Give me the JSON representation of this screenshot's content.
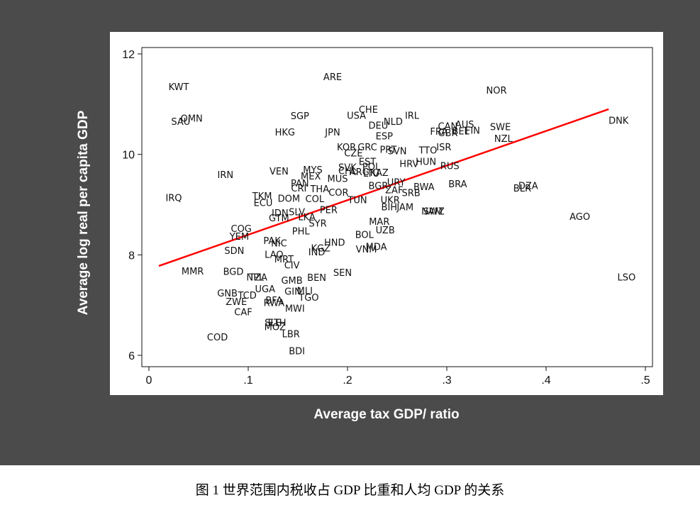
{
  "chart_data": {
    "type": "scatter",
    "xlabel": "Average tax GDP/ ratio",
    "ylabel": "Average log real per capita GDP",
    "xlim": [
      0,
      0.5
    ],
    "ylim": [
      6,
      12
    ],
    "xticks": [
      0,
      0.1,
      0.2,
      0.3,
      0.4,
      0.5
    ],
    "xtick_labels": [
      "0",
      ".1",
      ".2",
      ".3",
      ".4",
      ".5"
    ],
    "yticks": [
      6,
      8,
      10,
      12
    ],
    "ytick_labels": [
      "6",
      "8",
      "10",
      "12"
    ],
    "grid": false,
    "fit_line": {
      "x": [
        0.01,
        0.463
      ],
      "y": [
        7.78,
        10.9
      ],
      "color": "#ff0000"
    },
    "points": [
      {
        "label": "KWT",
        "x": 0.03,
        "y": 11.35
      },
      {
        "label": "ARE",
        "x": 0.185,
        "y": 11.55
      },
      {
        "label": "NOR",
        "x": 0.35,
        "y": 11.28
      },
      {
        "label": "DNK",
        "x": 0.473,
        "y": 10.68
      },
      {
        "label": "OMN",
        "x": 0.043,
        "y": 10.72
      },
      {
        "label": "SAU",
        "x": 0.032,
        "y": 10.66
      },
      {
        "label": "SGP",
        "x": 0.152,
        "y": 10.77
      },
      {
        "label": "HKG",
        "x": 0.137,
        "y": 10.45
      },
      {
        "label": "JPN",
        "x": 0.185,
        "y": 10.45
      },
      {
        "label": "CHE",
        "x": 0.221,
        "y": 10.9
      },
      {
        "label": "USA",
        "x": 0.209,
        "y": 10.78
      },
      {
        "label": "NLD",
        "x": 0.246,
        "y": 10.66
      },
      {
        "label": "DEU",
        "x": 0.231,
        "y": 10.58
      },
      {
        "label": "IRL",
        "x": 0.265,
        "y": 10.78
      },
      {
        "label": "ESP",
        "x": 0.237,
        "y": 10.37
      },
      {
        "label": "CAN",
        "x": 0.301,
        "y": 10.57
      },
      {
        "label": "AUS",
        "x": 0.318,
        "y": 10.6
      },
      {
        "label": "FRA",
        "x": 0.292,
        "y": 10.46
      },
      {
        "label": "GBR",
        "x": 0.301,
        "y": 10.43
      },
      {
        "label": "BEL",
        "x": 0.314,
        "y": 10.47
      },
      {
        "label": "FIN",
        "x": 0.326,
        "y": 10.48
      },
      {
        "label": "SWE",
        "x": 0.354,
        "y": 10.55
      },
      {
        "label": "NZL",
        "x": 0.357,
        "y": 10.32
      },
      {
        "label": "KOR",
        "x": 0.199,
        "y": 10.15
      },
      {
        "label": "GRC",
        "x": 0.22,
        "y": 10.15
      },
      {
        "label": "PRT",
        "x": 0.241,
        "y": 10.1
      },
      {
        "label": "CZE",
        "x": 0.206,
        "y": 10.03
      },
      {
        "label": "SVN",
        "x": 0.25,
        "y": 10.07
      },
      {
        "label": "TTO",
        "x": 0.281,
        "y": 10.09
      },
      {
        "label": "ISR",
        "x": 0.297,
        "y": 10.15
      },
      {
        "label": "HRV",
        "x": 0.262,
        "y": 9.82
      },
      {
        "label": "HUN",
        "x": 0.279,
        "y": 9.86
      },
      {
        "label": "RUS",
        "x": 0.303,
        "y": 9.78
      },
      {
        "label": "EST",
        "x": 0.22,
        "y": 9.86
      },
      {
        "label": "SVK",
        "x": 0.2,
        "y": 9.75
      },
      {
        "label": "POL",
        "x": 0.224,
        "y": 9.76
      },
      {
        "label": "CHL",
        "x": 0.2,
        "y": 9.68
      },
      {
        "label": "MYS",
        "x": 0.165,
        "y": 9.7
      },
      {
        "label": "VEN",
        "x": 0.131,
        "y": 9.67
      },
      {
        "label": "IRN",
        "x": 0.077,
        "y": 9.6
      },
      {
        "label": "ARG",
        "x": 0.212,
        "y": 9.66
      },
      {
        "label": "LTU",
        "x": 0.224,
        "y": 9.63
      },
      {
        "label": "KAZ",
        "x": 0.232,
        "y": 9.64
      },
      {
        "label": "MEX",
        "x": 0.163,
        "y": 9.57
      },
      {
        "label": "MUS",
        "x": 0.19,
        "y": 9.52
      },
      {
        "label": "URY",
        "x": 0.249,
        "y": 9.45
      },
      {
        "label": "BGR",
        "x": 0.231,
        "y": 9.38
      },
      {
        "label": "BRA",
        "x": 0.311,
        "y": 9.42
      },
      {
        "label": "BWA",
        "x": 0.277,
        "y": 9.36
      },
      {
        "label": "ZAF",
        "x": 0.247,
        "y": 9.3
      },
      {
        "label": "SRB",
        "x": 0.264,
        "y": 9.24
      },
      {
        "label": "PAN",
        "x": 0.152,
        "y": 9.43
      },
      {
        "label": "CRI",
        "x": 0.151,
        "y": 9.33
      },
      {
        "label": "THA",
        "x": 0.172,
        "y": 9.32
      },
      {
        "label": "COR",
        "x": 0.191,
        "y": 9.25
      },
      {
        "label": "TUN",
        "x": 0.21,
        "y": 9.1
      },
      {
        "label": "UKR",
        "x": 0.243,
        "y": 9.1
      },
      {
        "label": "DZA",
        "x": 0.382,
        "y": 9.38
      },
      {
        "label": "BLR",
        "x": 0.376,
        "y": 9.33
      },
      {
        "label": "IRQ",
        "x": 0.025,
        "y": 9.14
      },
      {
        "label": "TKM",
        "x": 0.114,
        "y": 9.18
      },
      {
        "label": "DOM",
        "x": 0.141,
        "y": 9.13
      },
      {
        "label": "ECU",
        "x": 0.115,
        "y": 9.04
      },
      {
        "label": "COL",
        "x": 0.167,
        "y": 9.12
      },
      {
        "label": "IDN",
        "x": 0.132,
        "y": 8.84
      },
      {
        "label": "SLV",
        "x": 0.149,
        "y": 8.86
      },
      {
        "label": "PER",
        "x": 0.181,
        "y": 8.9
      },
      {
        "label": "LKA",
        "x": 0.159,
        "y": 8.76
      },
      {
        "label": "GTM",
        "x": 0.131,
        "y": 8.74
      },
      {
        "label": "SYR",
        "x": 0.17,
        "y": 8.63
      },
      {
        "label": "JAM",
        "x": 0.258,
        "y": 8.96
      },
      {
        "label": "BIH",
        "x": 0.242,
        "y": 8.96
      },
      {
        "label": "NAM",
        "x": 0.285,
        "y": 8.87
      },
      {
        "label": "SWZ",
        "x": 0.287,
        "y": 8.87
      },
      {
        "label": "AGO",
        "x": 0.434,
        "y": 8.77
      },
      {
        "label": "MAR",
        "x": 0.232,
        "y": 8.67
      },
      {
        "label": "UZB",
        "x": 0.238,
        "y": 8.5
      },
      {
        "label": "BOL",
        "x": 0.217,
        "y": 8.41
      },
      {
        "label": "PHL",
        "x": 0.153,
        "y": 8.48
      },
      {
        "label": "COG",
        "x": 0.093,
        "y": 8.53
      },
      {
        "label": "YEM",
        "x": 0.091,
        "y": 8.37
      },
      {
        "label": "PAK",
        "x": 0.124,
        "y": 8.29
      },
      {
        "label": "NIC",
        "x": 0.131,
        "y": 8.24
      },
      {
        "label": "HND",
        "x": 0.187,
        "y": 8.25
      },
      {
        "label": "KGZ",
        "x": 0.173,
        "y": 8.14
      },
      {
        "label": "IND",
        "x": 0.169,
        "y": 8.06
      },
      {
        "label": "MDA",
        "x": 0.229,
        "y": 8.17
      },
      {
        "label": "VNM",
        "x": 0.219,
        "y": 8.12
      },
      {
        "label": "SDN",
        "x": 0.086,
        "y": 8.09
      },
      {
        "label": "LAO",
        "x": 0.126,
        "y": 8.01
      },
      {
        "label": "MRT",
        "x": 0.136,
        "y": 7.92
      },
      {
        "label": "CIV",
        "x": 0.144,
        "y": 7.8
      },
      {
        "label": "SEN",
        "x": 0.195,
        "y": 7.65
      },
      {
        "label": "MMR",
        "x": 0.044,
        "y": 7.68
      },
      {
        "label": "BGD",
        "x": 0.085,
        "y": 7.67
      },
      {
        "label": "NPL",
        "x": 0.107,
        "y": 7.56
      },
      {
        "label": "TZA",
        "x": 0.11,
        "y": 7.56
      },
      {
        "label": "GMB",
        "x": 0.144,
        "y": 7.5
      },
      {
        "label": "BEN",
        "x": 0.169,
        "y": 7.55
      },
      {
        "label": "UGA",
        "x": 0.117,
        "y": 7.33
      },
      {
        "label": "GIN",
        "x": 0.145,
        "y": 7.28
      },
      {
        "label": "MLI",
        "x": 0.157,
        "y": 7.29
      },
      {
        "label": "TGO",
        "x": 0.161,
        "y": 7.16
      },
      {
        "label": "GNB",
        "x": 0.079,
        "y": 7.24
      },
      {
        "label": "TCD",
        "x": 0.099,
        "y": 7.2
      },
      {
        "label": "ZWE",
        "x": 0.088,
        "y": 7.07
      },
      {
        "label": "RWA",
        "x": 0.126,
        "y": 7.05
      },
      {
        "label": "BFA",
        "x": 0.126,
        "y": 7.1
      },
      {
        "label": "MWI",
        "x": 0.147,
        "y": 6.94
      },
      {
        "label": "CAF",
        "x": 0.095,
        "y": 6.87
      },
      {
        "label": "SLE",
        "x": 0.125,
        "y": 6.66
      },
      {
        "label": "ETH",
        "x": 0.129,
        "y": 6.66
      },
      {
        "label": "MOZ",
        "x": 0.127,
        "y": 6.57
      },
      {
        "label": "LBR",
        "x": 0.143,
        "y": 6.43
      },
      {
        "label": "COD",
        "x": 0.069,
        "y": 6.37
      },
      {
        "label": "BDI",
        "x": 0.149,
        "y": 6.09
      },
      {
        "label": "LSO",
        "x": 0.481,
        "y": 7.56
      }
    ]
  },
  "caption": "图 1  世界范围内税收占 GDP 比重和人均 GDP 的关系"
}
